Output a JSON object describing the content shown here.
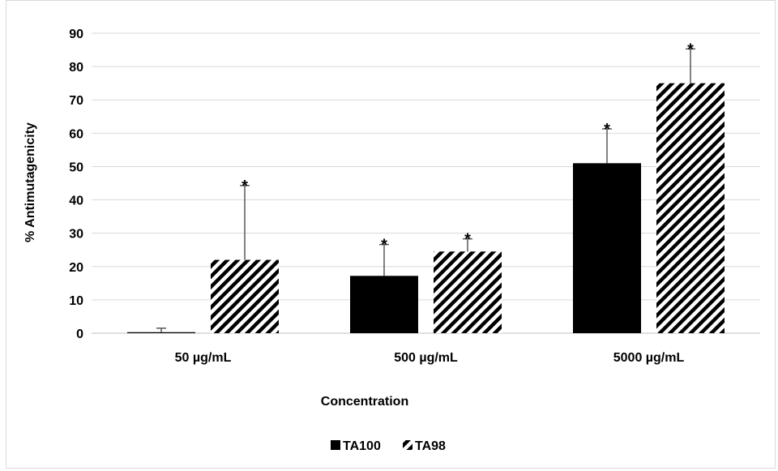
{
  "chart_data": {
    "type": "bar",
    "xlabel": "Concentration",
    "ylabel": "% Antimutagenicity",
    "ylim": [
      0,
      90
    ],
    "yticks": [
      0,
      10,
      20,
      30,
      40,
      50,
      60,
      70,
      80,
      90
    ],
    "categories": [
      "50 µg/mL",
      "500 µg/mL",
      "5000 µg/mL"
    ],
    "series": [
      {
        "name": "TA100",
        "values": [
          0.3,
          17.2,
          51.0
        ],
        "error_plus": [
          1.2,
          9.4,
          10.3
        ],
        "significance": [
          "",
          "*",
          "*"
        ],
        "fill": "solid",
        "color": "#000000"
      },
      {
        "name": "TA98",
        "values": [
          22.0,
          24.5,
          75.0
        ],
        "error_plus": [
          22.3,
          3.8,
          10.3
        ],
        "significance": [
          "*",
          "*",
          "*"
        ],
        "fill": "diagonal-stripes",
        "color": "#000000"
      }
    ],
    "grid": true,
    "legend_position": "bottom"
  }
}
